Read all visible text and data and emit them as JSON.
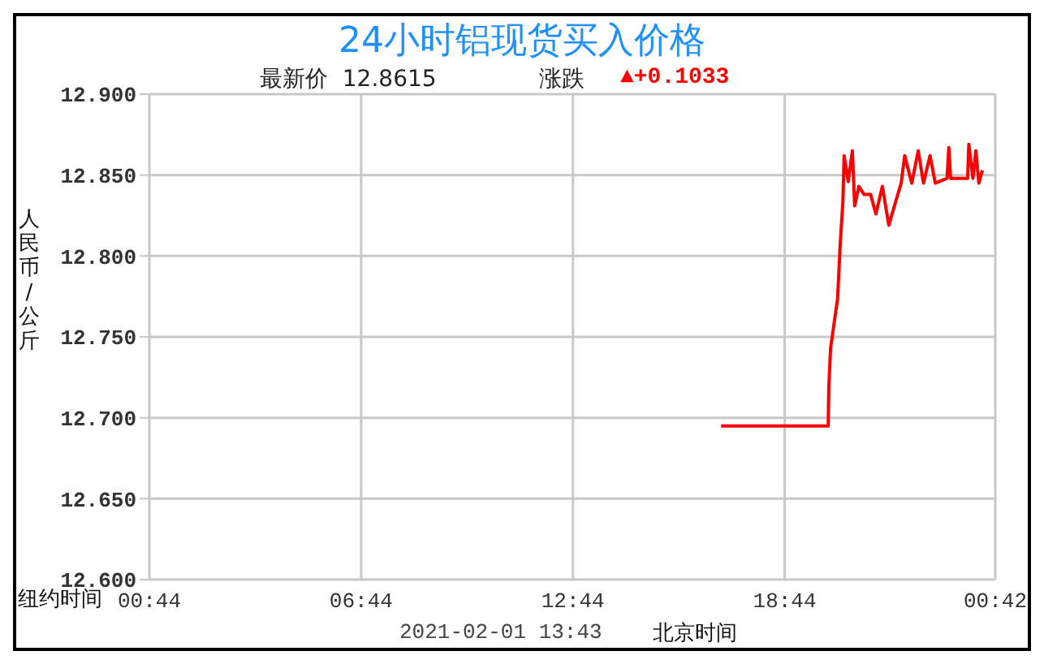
{
  "chart_data": {
    "type": "line",
    "title": "24小时铝现货买入价格",
    "xlabel": "纽约时间",
    "ylabel": "人民币/公斤",
    "annotations": [
      "最新价  12.8615",
      "涨跌",
      "▲+0.1033",
      "2021-02-01 13:43",
      "北京时间"
    ],
    "xlim": [
      "2021-01-31T00:44",
      "2021-02-01T00:42"
    ],
    "xticks": [
      {
        "value": "2021-01-31T00:44",
        "label": "00:44"
      },
      {
        "value": "2021-01-31T06:44",
        "label": "06:44"
      },
      {
        "value": "2021-01-31T12:44",
        "label": "12:44"
      },
      {
        "value": "2021-01-31T18:44",
        "label": "18:44"
      },
      {
        "value": "2021-02-01T00:42",
        "label": "00:42"
      }
    ],
    "ylim": [
      12.6,
      12.9
    ],
    "yticks": [
      {
        "value": 12.6,
        "label": "12.600"
      },
      {
        "value": 12.65,
        "label": "12.650"
      },
      {
        "value": 12.7,
        "label": "12.700"
      },
      {
        "value": 12.75,
        "label": "12.750"
      },
      {
        "value": 12.8,
        "label": "12.800"
      },
      {
        "value": 12.85,
        "label": "12.850"
      },
      {
        "value": 12.9,
        "label": "12.900"
      }
    ],
    "grid": true,
    "legend": false,
    "marker": "none",
    "line_style": "solid",
    "series": [
      {
        "color": "#ff0000",
        "x": [
          "2021-01-31T16:56",
          "2021-01-31T19:58",
          "2021-01-31T19:59",
          "2021-01-31T20:02",
          "2021-01-31T20:14",
          "2021-01-31T20:18",
          "2021-01-31T20:23",
          "2021-01-31T20:25",
          "2021-01-31T20:32",
          "2021-01-31T20:39",
          "2021-01-31T20:43",
          "2021-01-31T20:50",
          "2021-01-31T20:59",
          "2021-01-31T21:10",
          "2021-01-31T21:19",
          "2021-01-31T21:30",
          "2021-01-31T21:41",
          "2021-01-31T21:53",
          "2021-01-31T22:02",
          "2021-01-31T22:08",
          "2021-01-31T22:20",
          "2021-01-31T22:31",
          "2021-01-31T22:40",
          "2021-01-31T22:51",
          "2021-01-31T23:00",
          "2021-01-31T23:20",
          "2021-01-31T23:23",
          "2021-01-31T23:26",
          "2021-01-31T23:55",
          "2021-01-31T23:57",
          "2021-02-01T00:04",
          "2021-02-01T00:09",
          "2021-02-01T00:14",
          "2021-02-01T00:20"
        ],
        "values": [
          12.695,
          12.695,
          12.719,
          12.743,
          12.774,
          12.805,
          12.834,
          12.862,
          12.846,
          12.865,
          12.831,
          12.843,
          12.838,
          12.838,
          12.826,
          12.843,
          12.819,
          12.834,
          12.845,
          12.862,
          12.845,
          12.865,
          12.845,
          12.862,
          12.845,
          12.848,
          12.867,
          12.848,
          12.848,
          12.869,
          12.848,
          12.865,
          12.845,
          12.853
        ]
      }
    ]
  }
}
